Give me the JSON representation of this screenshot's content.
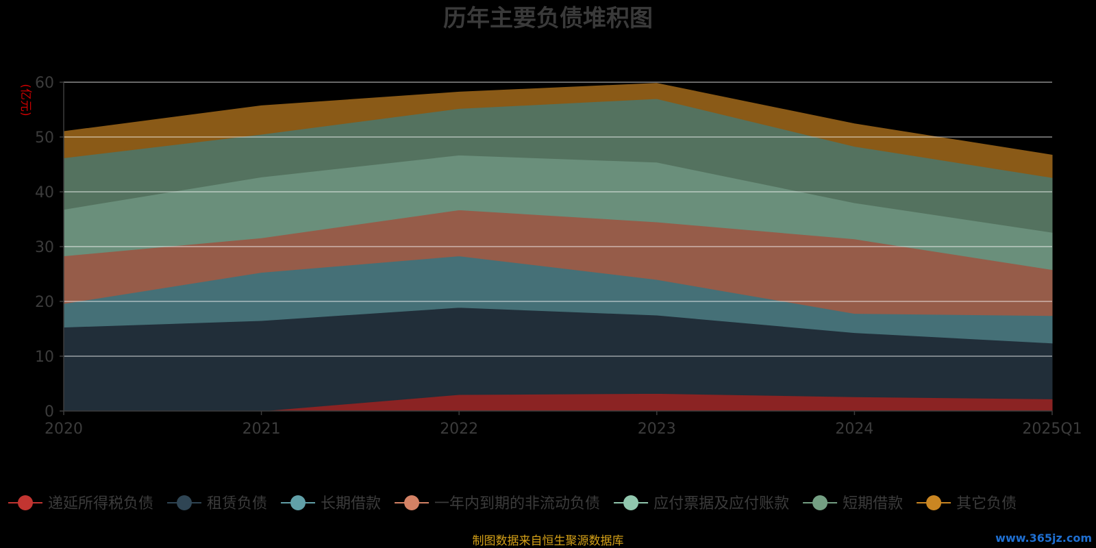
{
  "chart_data": {
    "type": "area",
    "stacked": true,
    "title": "历年主要负债堆积图",
    "ylabel": "(亿元)",
    "x": [
      "2020",
      "2021",
      "2022",
      "2023",
      "2024",
      "2025Q1"
    ],
    "ylim": [
      0,
      60
    ],
    "yticks": [
      0,
      10,
      20,
      30,
      40,
      50,
      60
    ],
    "grid": true,
    "legend_position": "bottom",
    "series": [
      {
        "name": "递延所得税负债",
        "color": "#8b2323",
        "legend_color": "#c23531",
        "values": [
          0,
          0,
          3.0,
          3.2,
          2.6,
          2.2
        ]
      },
      {
        "name": "租赁负债",
        "color": "#212e39",
        "legend_color": "#2f4554",
        "values": [
          15.3,
          16.5,
          15.9,
          14.3,
          11.7,
          10.2
        ]
      },
      {
        "name": "长期借款",
        "color": "#457077",
        "legend_color": "#61a0a8",
        "values": [
          4.3,
          8.8,
          9.4,
          6.5,
          3.5,
          5.0
        ]
      },
      {
        "name": "一年内到期的非流动负债",
        "color": "#965c49",
        "legend_color": "#d48265",
        "values": [
          8.7,
          6.3,
          8.4,
          10.5,
          13.6,
          8.4
        ]
      },
      {
        "name": "应付票据及应付账款",
        "color": "#6a8f7b",
        "legend_color": "#91c7ae",
        "values": [
          8.5,
          11.1,
          10.0,
          10.9,
          6.6,
          6.8
        ]
      },
      {
        "name": "短期借款",
        "color": "#54725f",
        "legend_color": "#749f83",
        "values": [
          9.4,
          7.8,
          8.5,
          11.6,
          10.3,
          10.0
        ]
      },
      {
        "name": "其它负债",
        "color": "#8a5a17",
        "legend_color": "#ca8622",
        "values": [
          4.8,
          5.2,
          3.0,
          2.8,
          4.1,
          4.1
        ]
      }
    ]
  },
  "footer": "制图数据来自恒生聚源数据库",
  "watermark": "www.365jz.com"
}
